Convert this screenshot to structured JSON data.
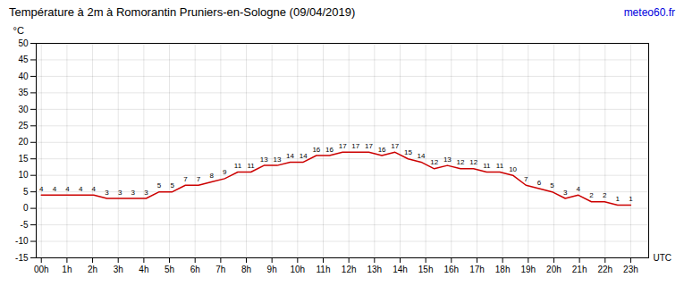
{
  "chart_data": {
    "type": "line",
    "title": "Température à 2m à Romorantin Pruniers-en-Sologne (09/04/2019)",
    "ylabel": "°C",
    "xlabel": "UTC",
    "annotations": [
      {
        "text": "meteo60.fr",
        "color": "#0000dd"
      }
    ],
    "x": [
      0,
      0.5111111111,
      1.0222222222,
      1.5333333333,
      2.0444444444,
      2.5555555556,
      3.0666666667,
      3.5777777778,
      4.0888888889,
      4.6,
      5.1111111111,
      5.6222222222,
      6.1333333333,
      6.6444444444,
      7.1555555556,
      7.6666666667,
      8.1777777778,
      8.6888888889,
      9.2,
      9.7111111111,
      10.2222222222,
      10.7333333333,
      11.2444444444,
      11.7555555556,
      12.2666666667,
      12.7777777778,
      13.2888888889,
      13.8,
      14.3111111111,
      14.8222222222,
      15.3333333333,
      15.8444444444,
      16.3555555556,
      16.8666666667,
      17.3777777778,
      17.8888888889,
      18.4,
      18.9111111111,
      19.4222222222,
      19.9333333333,
      20.4444444444,
      20.9555555556,
      21.4666666667,
      21.9777777778,
      22.4888888889,
      23
    ],
    "values": [
      4,
      4,
      4,
      4,
      4,
      3,
      3,
      3,
      3,
      5,
      5,
      7,
      7,
      8,
      9,
      11,
      11,
      13,
      13,
      14,
      14,
      16,
      16,
      17,
      17,
      17,
      16,
      17,
      15,
      14,
      12,
      13,
      12,
      12,
      11,
      11,
      10,
      7,
      6,
      5,
      3,
      4,
      2,
      2,
      1,
      1
    ],
    "color": "#cc0000",
    "data_labels": true,
    "grid": true,
    "xlim": [
      -0.2,
      23.7
    ],
    "xticks": [
      {
        "value": 0,
        "label": "00h"
      },
      {
        "value": 1,
        "label": "1h"
      },
      {
        "value": 2,
        "label": "2h"
      },
      {
        "value": 3,
        "label": "3h"
      },
      {
        "value": 4,
        "label": "4h"
      },
      {
        "value": 5,
        "label": "5h"
      },
      {
        "value": 6,
        "label": "6h"
      },
      {
        "value": 7,
        "label": "7h"
      },
      {
        "value": 8,
        "label": "8h"
      },
      {
        "value": 9,
        "label": "9h"
      },
      {
        "value": 10,
        "label": "10h"
      },
      {
        "value": 11,
        "label": "11h"
      },
      {
        "value": 12,
        "label": "12h"
      },
      {
        "value": 13,
        "label": "13h"
      },
      {
        "value": 14,
        "label": "14h"
      },
      {
        "value": 15,
        "label": "15h"
      },
      {
        "value": 16,
        "label": "16h"
      },
      {
        "value": 17,
        "label": "17h"
      },
      {
        "value": 18,
        "label": "18h"
      },
      {
        "value": 19,
        "label": "19h"
      },
      {
        "value": 20,
        "label": "20h"
      },
      {
        "value": 21,
        "label": "21h"
      },
      {
        "value": 22,
        "label": "22h"
      },
      {
        "value": 23,
        "label": "23h"
      }
    ],
    "ylim": [
      -15,
      50
    ],
    "yticks": [
      -15,
      -10,
      -5,
      0,
      5,
      10,
      15,
      20,
      25,
      30,
      35,
      40,
      45,
      50
    ]
  }
}
